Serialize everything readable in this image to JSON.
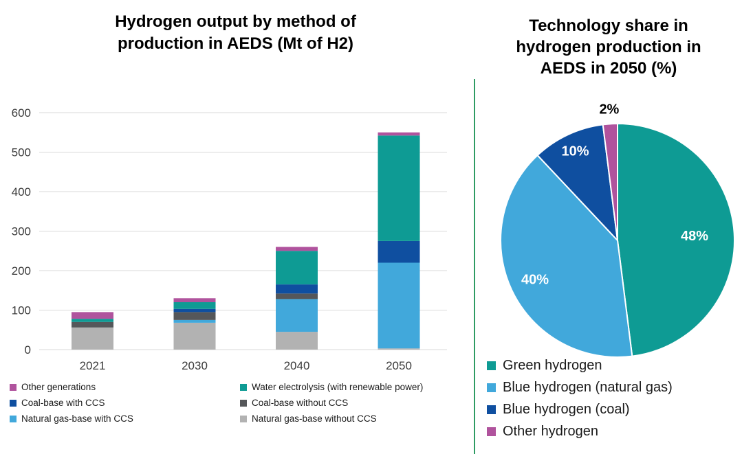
{
  "page": {
    "background": "#ffffff",
    "divider_color": "#2E9B63",
    "grid_color": "#D9D9D9",
    "tick_label_color": "#3B3B3B"
  },
  "chart_data": [
    {
      "type": "bar",
      "stacked": true,
      "title": "Hydrogen output by method of production in AEDS (Mt of H2)",
      "title_lines": [
        "Hydrogen output by method of",
        "production in AEDS (Mt of H2)"
      ],
      "xlabel": "",
      "ylabel": "",
      "ylim": [
        0,
        600
      ],
      "yticks": [
        0,
        100,
        200,
        300,
        400,
        500,
        600
      ],
      "grid": true,
      "legend_position": "bottom",
      "categories": [
        "2021",
        "2030",
        "2040",
        "2050"
      ],
      "series": [
        {
          "name": "Natural gas-base without CCS",
          "color": "#B2B2B2",
          "values": [
            56,
            68,
            45,
            3
          ]
        },
        {
          "name": "Natural gas-base with CCS",
          "color": "#41A8DB",
          "values": [
            0,
            7,
            83,
            217
          ]
        },
        {
          "name": "Coal-base without CCS",
          "color": "#55575A",
          "values": [
            14,
            20,
            14,
            0
          ]
        },
        {
          "name": "Coal-base with CCS",
          "color": "#0F4FA0",
          "values": [
            0,
            8,
            23,
            55
          ]
        },
        {
          "name": "Water electrolysis (with renewable power)",
          "color": "#0E9B94",
          "values": [
            8,
            17,
            85,
            267
          ]
        },
        {
          "name": "Other generations",
          "color": "#B0539D",
          "values": [
            17,
            10,
            10,
            8
          ]
        }
      ],
      "totals": [
        95,
        130,
        260,
        550
      ],
      "legend_columns": [
        [
          "Other generations",
          "Coal-base with CCS",
          "Natural gas-base with CCS"
        ],
        [
          "Water electrolysis (with renewable power)",
          "Coal-base without CCS",
          "Natural gas-base without CCS"
        ]
      ]
    },
    {
      "type": "pie",
      "title": "Technology share in hydrogen production in AEDS in 2050 (%)",
      "title_lines": [
        "Technology share in",
        "hydrogen production in",
        "AEDS in 2050 (%)"
      ],
      "direction": "clockwise",
      "start_angle_deg": 0,
      "legend_position": "bottom",
      "slices": [
        {
          "label": "Green hydrogen",
          "value": 48,
          "data_label": "48%",
          "color": "#0E9B94",
          "label_color": "#FFFFFF",
          "label_r": 0.66
        },
        {
          "label": "Blue hydrogen (natural gas)",
          "value": 40,
          "data_label": "40%",
          "color": "#41A8DB",
          "label_color": "#FFFFFF",
          "label_r": 0.78
        },
        {
          "label": "Blue hydrogen (coal)",
          "value": 10,
          "data_label": "10%",
          "color": "#0F4FA0",
          "label_color": "#FFFFFF",
          "label_r": 0.85
        },
        {
          "label": "Other hydrogen",
          "value": 2,
          "data_label": "2%",
          "color": "#B0539D",
          "label_color": "#000000",
          "label_r": 1.13
        }
      ]
    }
  ]
}
